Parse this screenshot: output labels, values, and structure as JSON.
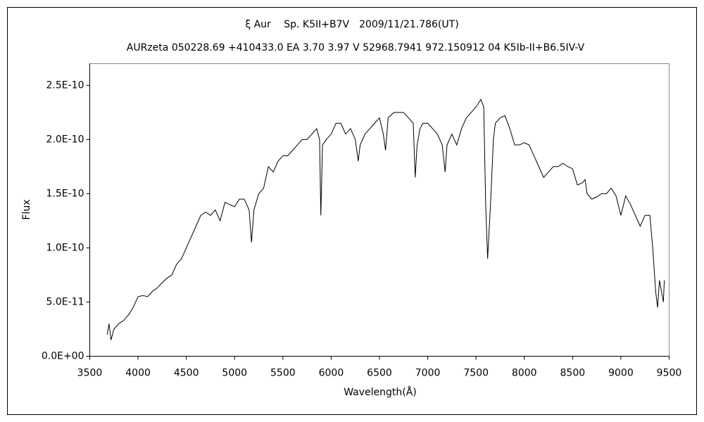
{
  "chart_data": {
    "type": "line",
    "title": "ξ Aur　 Sp. K5II+B7V　2009/11/21.786(UT)",
    "subtitle": "AURzeta 050228.69 +410433.0 EA 3.70 3.97 V 52968.7941 972.150912 04 K5Ib-II+B6.5IV-V",
    "x_label": "Wavelength(Å)",
    "y_label": "Flux",
    "xlim": [
      3500,
      9500
    ],
    "xticks": [
      3500,
      4000,
      4500,
      5000,
      5500,
      6000,
      6500,
      7000,
      7500,
      8000,
      8500,
      9000,
      9500
    ],
    "ylim": [
      0,
      2.7e-10
    ],
    "yticks": [
      {
        "value": 0,
        "label": "0.0E+00"
      },
      {
        "value": 5e-11,
        "label": "5.0E-11"
      },
      {
        "value": 1e-10,
        "label": "1.0E-10"
      },
      {
        "value": 1.5e-10,
        "label": "1.5E-10"
      },
      {
        "value": 2e-10,
        "label": "2.0E-10"
      },
      {
        "value": 2.5e-10,
        "label": "2.5E-10"
      }
    ],
    "grid": false,
    "series": [
      {
        "color": "#000000",
        "x": [
          3680,
          3700,
          3720,
          3750,
          3800,
          3850,
          3900,
          3950,
          4000,
          4050,
          4100,
          4150,
          4200,
          4250,
          4300,
          4350,
          4400,
          4450,
          4500,
          4550,
          4600,
          4650,
          4700,
          4750,
          4800,
          4850,
          4900,
          4950,
          5000,
          5050,
          5100,
          5150,
          5175,
          5200,
          5250,
          5300,
          5350,
          5400,
          5450,
          5500,
          5550,
          5600,
          5650,
          5700,
          5750,
          5800,
          5850,
          5880,
          5893,
          5910,
          5950,
          6000,
          6050,
          6100,
          6150,
          6200,
          6250,
          6280,
          6300,
          6350,
          6400,
          6450,
          6500,
          6540,
          6563,
          6590,
          6650,
          6700,
          6750,
          6800,
          6850,
          6870,
          6890,
          6920,
          6950,
          7000,
          7050,
          7100,
          7150,
          7180,
          7200,
          7250,
          7300,
          7350,
          7400,
          7450,
          7500,
          7550,
          7580,
          7600,
          7620,
          7650,
          7680,
          7700,
          7750,
          7800,
          7850,
          7900,
          7950,
          8000,
          8050,
          8100,
          8150,
          8200,
          8250,
          8300,
          8350,
          8400,
          8450,
          8500,
          8550,
          8600,
          8630,
          8650,
          8700,
          8750,
          8800,
          8850,
          8900,
          8950,
          9000,
          9050,
          9100,
          9150,
          9200,
          9250,
          9300,
          9330,
          9360,
          9380,
          9400,
          9420,
          9440,
          9450
        ],
        "values": [
          2e-11,
          3e-11,
          1.5e-11,
          2.5e-11,
          3e-11,
          3.3e-11,
          3.8e-11,
          4.5e-11,
          5.5e-11,
          5.6e-11,
          5.5e-11,
          6e-11,
          6.3e-11,
          6.8e-11,
          7.2e-11,
          7.5e-11,
          8.5e-11,
          9e-11,
          1e-10,
          1.1e-10,
          1.2e-10,
          1.3e-10,
          1.33e-10,
          1.3e-10,
          1.35e-10,
          1.25e-10,
          1.42e-10,
          1.4e-10,
          1.38e-10,
          1.45e-10,
          1.45e-10,
          1.35e-10,
          1.05e-10,
          1.35e-10,
          1.5e-10,
          1.55e-10,
          1.75e-10,
          1.7e-10,
          1.8e-10,
          1.85e-10,
          1.85e-10,
          1.9e-10,
          1.95e-10,
          2e-10,
          2e-10,
          2.05e-10,
          2.1e-10,
          2e-10,
          1.3e-10,
          1.95e-10,
          2e-10,
          2.05e-10,
          2.15e-10,
          2.15e-10,
          2.05e-10,
          2.1e-10,
          2e-10,
          1.8e-10,
          1.95e-10,
          2.05e-10,
          2.1e-10,
          2.15e-10,
          2.2e-10,
          2.05e-10,
          1.9e-10,
          2.2e-10,
          2.25e-10,
          2.25e-10,
          2.25e-10,
          2.2e-10,
          2.15e-10,
          1.65e-10,
          1.95e-10,
          2.1e-10,
          2.15e-10,
          2.15e-10,
          2.1e-10,
          2.05e-10,
          1.95e-10,
          1.7e-10,
          1.95e-10,
          2.05e-10,
          1.95e-10,
          2.1e-10,
          2.2e-10,
          2.25e-10,
          2.3e-10,
          2.37e-10,
          2.3e-10,
          1.4e-10,
          9e-11,
          1.4e-10,
          2e-10,
          2.15e-10,
          2.2e-10,
          2.22e-10,
          2.1e-10,
          1.95e-10,
          1.95e-10,
          1.97e-10,
          1.95e-10,
          1.85e-10,
          1.75e-10,
          1.65e-10,
          1.7e-10,
          1.75e-10,
          1.75e-10,
          1.78e-10,
          1.75e-10,
          1.73e-10,
          1.58e-10,
          1.6e-10,
          1.63e-10,
          1.5e-10,
          1.45e-10,
          1.47e-10,
          1.5e-10,
          1.5e-10,
          1.55e-10,
          1.48e-10,
          1.3e-10,
          1.48e-10,
          1.4e-10,
          1.3e-10,
          1.2e-10,
          1.3e-10,
          1.3e-10,
          1e-10,
          6e-11,
          4.5e-11,
          7e-11,
          6e-11,
          5e-11,
          7e-11
        ]
      }
    ]
  }
}
